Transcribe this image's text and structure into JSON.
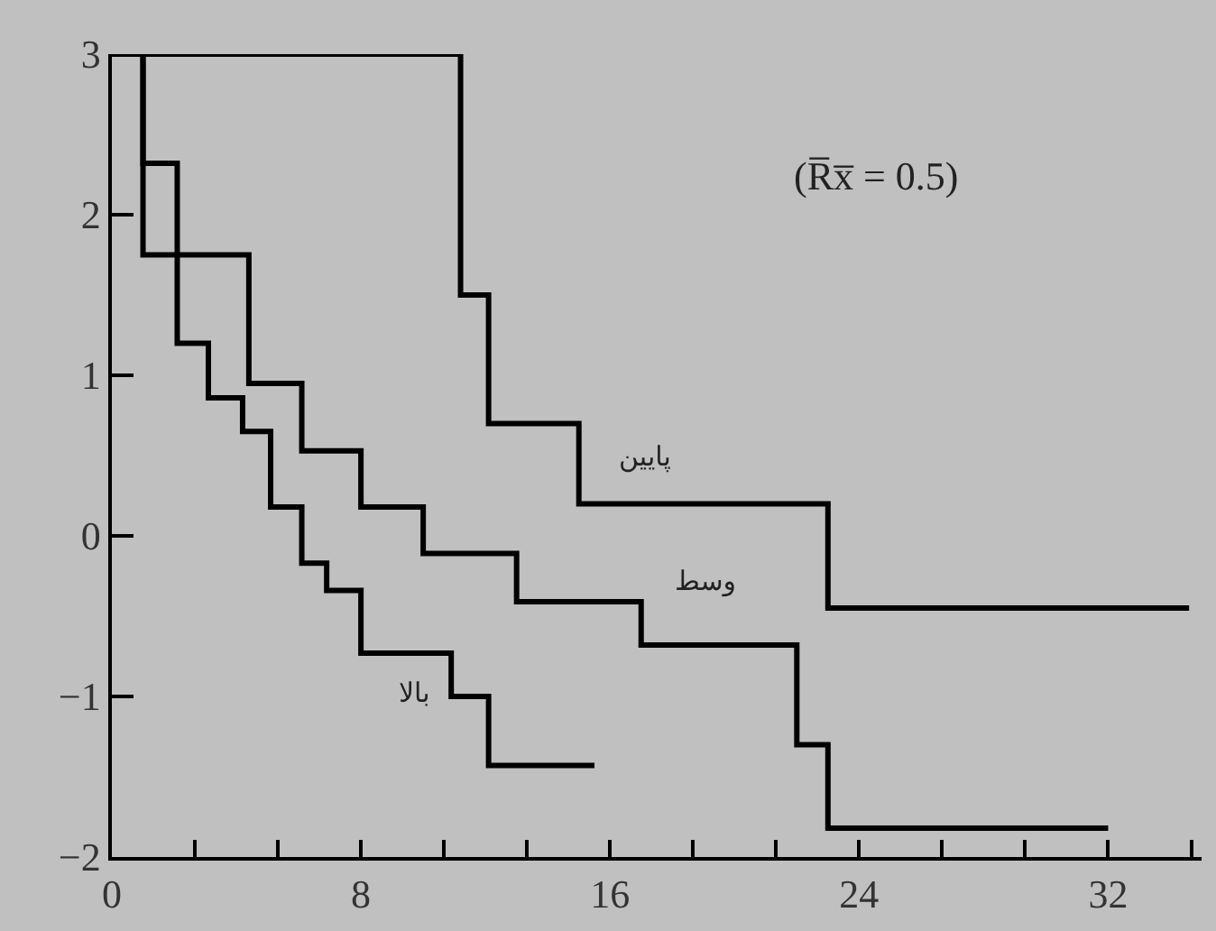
{
  "chart_data": {
    "type": "step",
    "series": [
      {
        "color": "#000000",
        "x": [
          0,
          11.2,
          12.1,
          15,
          23,
          34.6
        ],
        "values": [
          3,
          1.5,
          0.7,
          0.2,
          -0.45,
          -0.45
        ]
      },
      {
        "color": "#000000",
        "x": [
          0,
          1,
          4.4,
          6.1,
          8,
          10,
          13,
          17,
          22,
          23,
          32
        ],
        "values": [
          3,
          1.75,
          0.95,
          0.53,
          0.18,
          -0.11,
          -0.41,
          -0.68,
          -1.3,
          -1.82,
          -1.82
        ]
      },
      {
        "color": "#000000",
        "x": [
          0,
          1,
          2.1,
          3.1,
          4.2,
          5.1,
          6.1,
          6.9,
          8,
          10.9,
          12.1,
          15.5
        ],
        "values": [
          3,
          2.32,
          1.2,
          0.86,
          0.65,
          0.18,
          -0.17,
          -0.34,
          -0.73,
          -1,
          -1.43,
          -1.43
        ]
      }
    ],
    "annotations": [
      "پایین",
      "وسط",
      "بالا",
      "(R̅x̅ = 0.5)"
    ],
    "xlim": [
      0,
      35
    ],
    "ylim": [
      -2,
      3
    ],
    "xticks": [
      0,
      {
        "value": 2.667,
        "label": null
      },
      {
        "value": 5.333,
        "label": null
      },
      8,
      {
        "value": 10.667,
        "label": null
      },
      {
        "value": 13.333,
        "label": null
      },
      16,
      {
        "value": 18.667,
        "label": null
      },
      {
        "value": 21.333,
        "label": null
      },
      24,
      {
        "value": 26.667,
        "label": null
      },
      {
        "value": 29.333,
        "label": null
      },
      32,
      {
        "value": 34.667,
        "label": null
      }
    ],
    "yticks": [
      -2,
      -1,
      0,
      1,
      2,
      3
    ],
    "grid": false,
    "line_style": "solid",
    "marker": "none"
  }
}
